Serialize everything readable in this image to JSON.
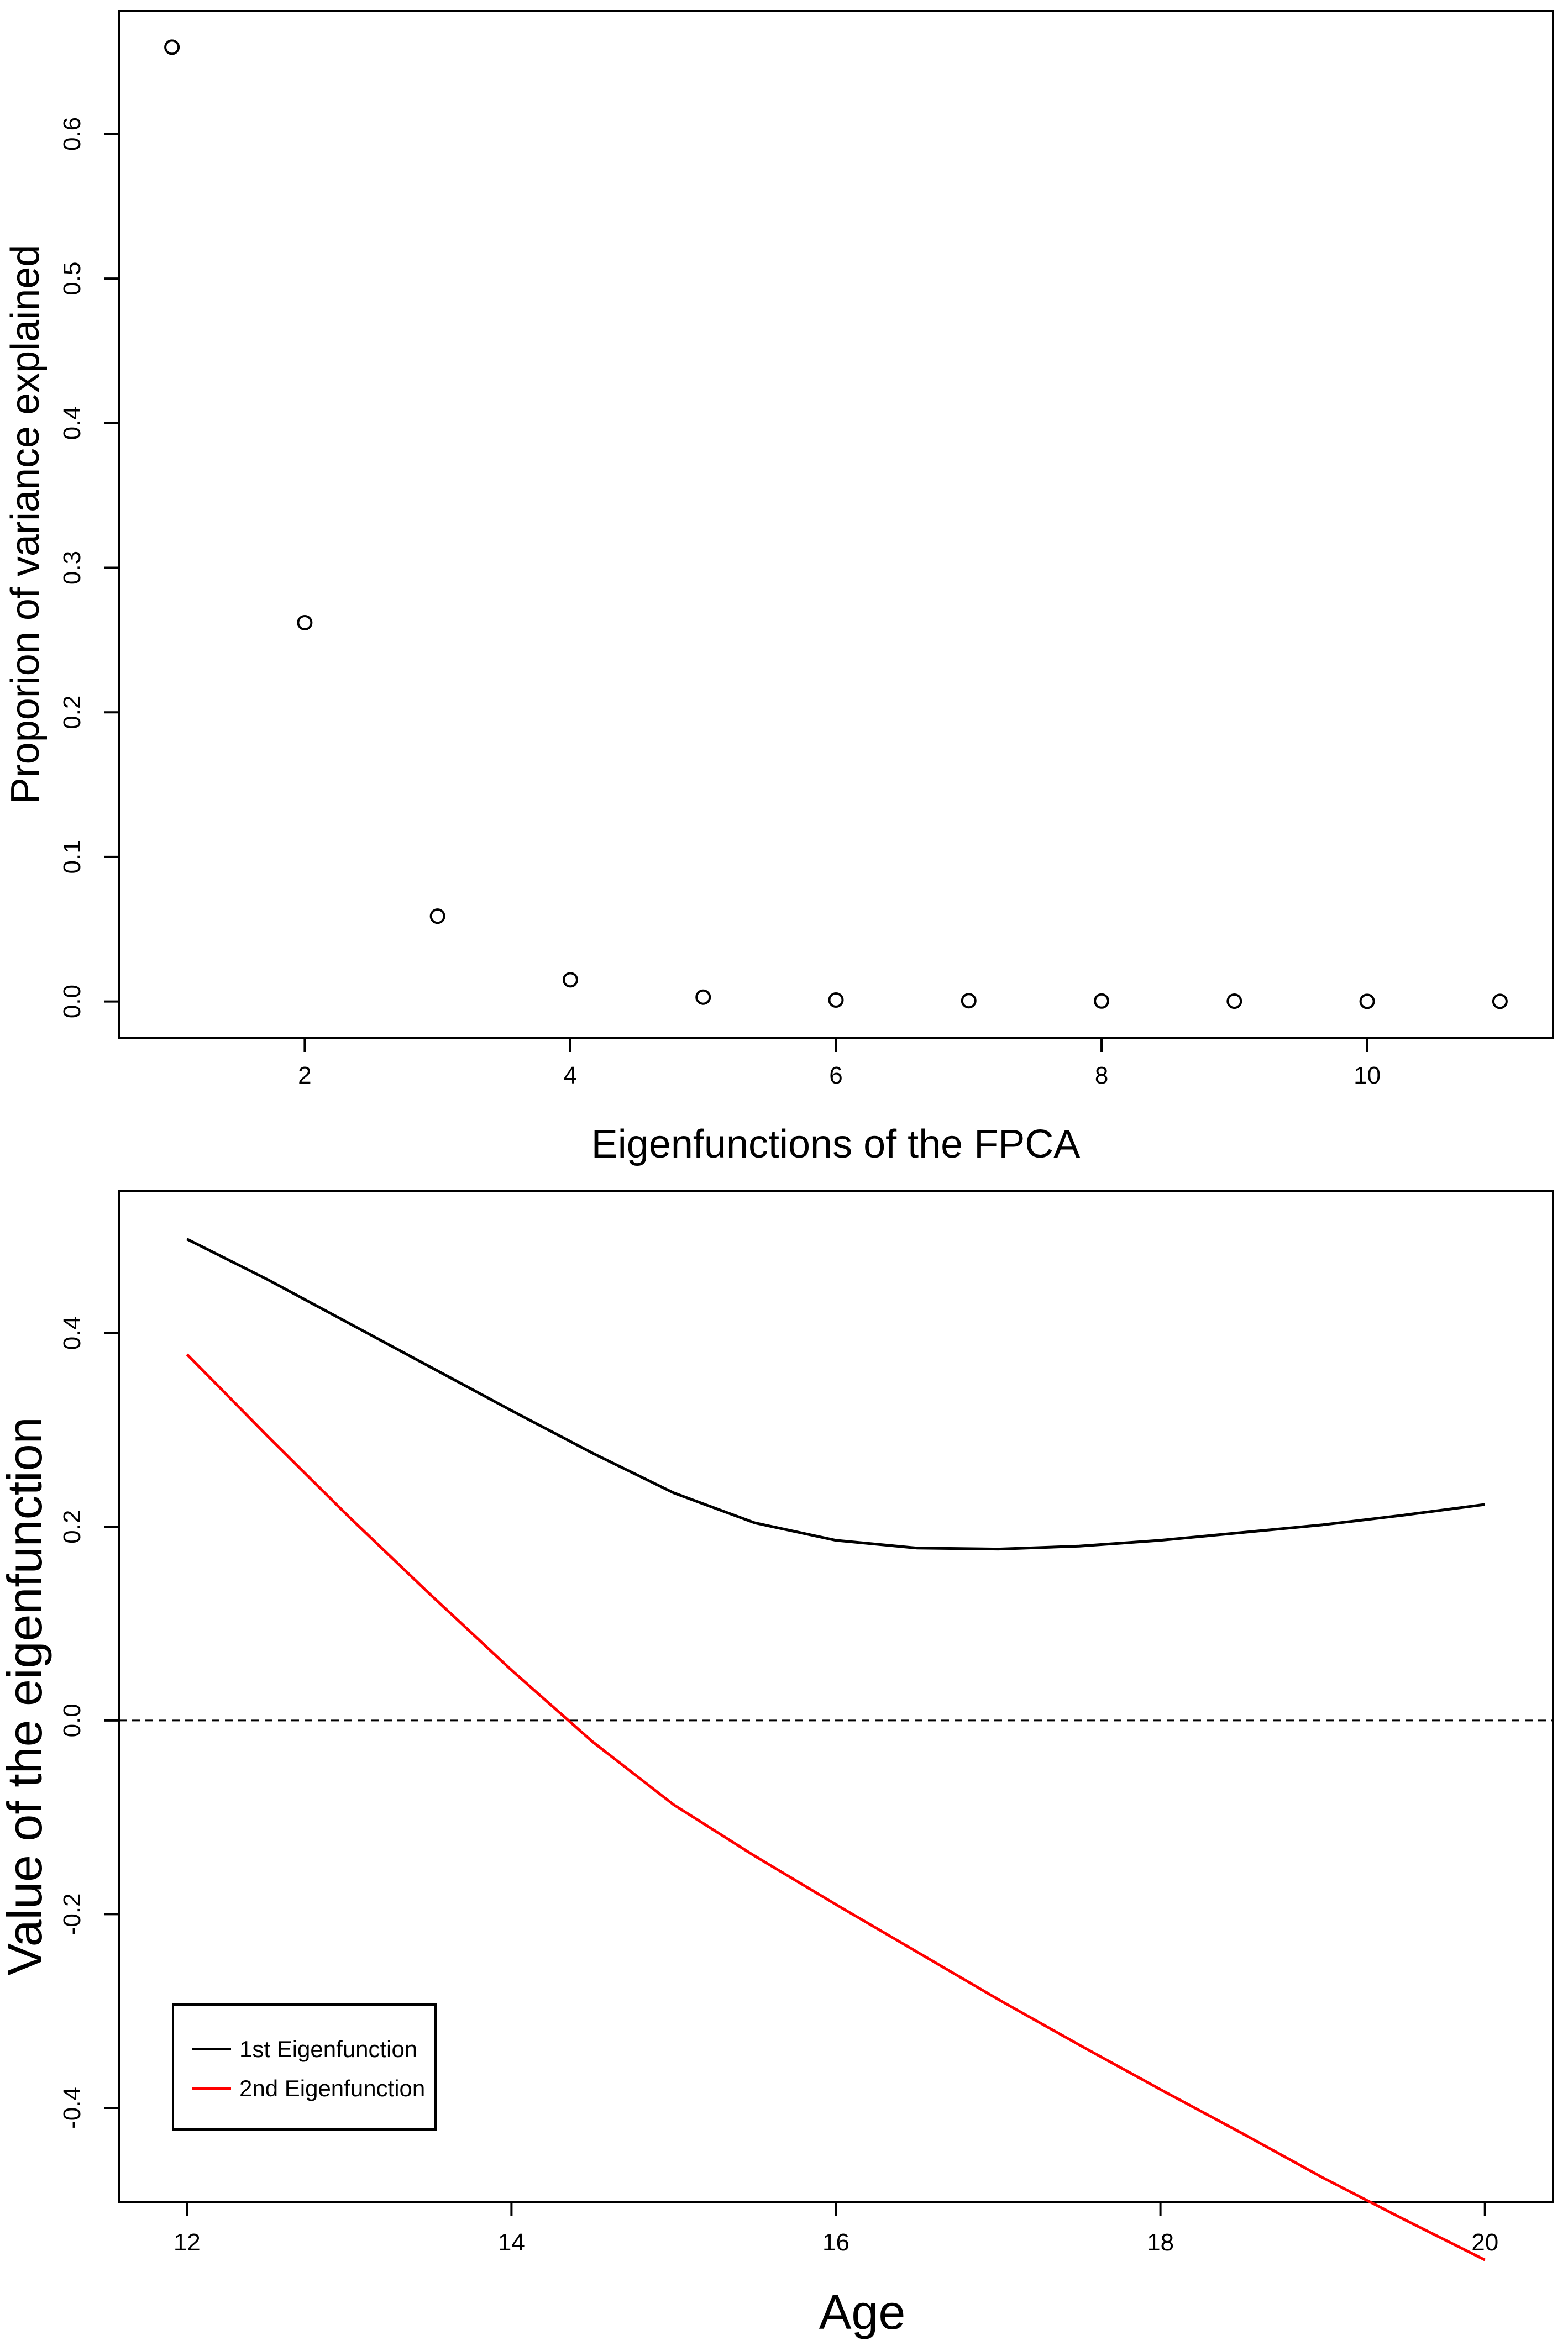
{
  "chart_data": [
    {
      "type": "scatter",
      "title": "",
      "xlabel": "Eigenfunctions of the FPCA",
      "ylabel": "Proporion of variance explained",
      "xlim": [
        0.6,
        11.4
      ],
      "ylim": [
        -0.025,
        0.685
      ],
      "xticks": [
        2,
        4,
        6,
        8,
        10
      ],
      "yticks": [
        0.0,
        0.1,
        0.2,
        0.3,
        0.4,
        0.5,
        0.6
      ],
      "xtick_labels": [
        "2",
        "4",
        "6",
        "8",
        "10"
      ],
      "ytick_labels": [
        "0.0",
        "0.1",
        "0.2",
        "0.3",
        "0.4",
        "0.5",
        "0.6"
      ],
      "x": [
        1,
        2,
        3,
        4,
        5,
        6,
        7,
        8,
        9,
        10,
        11
      ],
      "y": [
        0.66,
        0.262,
        0.059,
        0.015,
        0.003,
        0.001,
        0.0005,
        0.0003,
        0.0002,
        0.0001,
        0.0001
      ],
      "marker": "open-circle",
      "grid": false
    },
    {
      "type": "line",
      "title": "",
      "xlabel": "Age",
      "ylabel": "Value of the eigenfunction",
      "xlim": [
        11.58,
        20.42
      ],
      "ylim": [
        -0.497,
        0.547
      ],
      "xticks": [
        12,
        14,
        16,
        18,
        20
      ],
      "yticks": [
        -0.4,
        -0.2,
        0.0,
        0.2,
        0.4
      ],
      "xtick_labels": [
        "12",
        "14",
        "16",
        "18",
        "20"
      ],
      "ytick_labels": [
        "-0.4",
        "-0.2",
        "0.0",
        "0.2",
        "0.4"
      ],
      "reference_line": {
        "y": 0.0,
        "style": "dashed",
        "color": "#000000"
      },
      "legend_position": "bottom-left",
      "grid": false,
      "series": [
        {
          "name": "1st Eigenfunction",
          "color": "#000000",
          "x": [
            12,
            12.5,
            13,
            13.5,
            14,
            14.5,
            15,
            15.5,
            16,
            16.5,
            17,
            17.5,
            18,
            18.5,
            19,
            19.5,
            20
          ],
          "values": [
            0.497,
            0.455,
            0.41,
            0.365,
            0.32,
            0.276,
            0.235,
            0.204,
            0.186,
            0.178,
            0.177,
            0.18,
            0.186,
            0.194,
            0.202,
            0.212,
            0.223
          ]
        },
        {
          "name": "2nd Eigenfunction",
          "color": "#ff0000",
          "x": [
            12,
            12.5,
            13,
            13.5,
            14,
            14.5,
            15,
            15.5,
            16,
            16.5,
            17,
            17.5,
            18,
            18.5,
            19,
            19.5,
            20
          ],
          "values": [
            0.378,
            0.293,
            0.21,
            0.13,
            0.052,
            -0.022,
            -0.087,
            -0.14,
            -0.19,
            -0.239,
            -0.288,
            -0.335,
            -0.381,
            -0.426,
            -0.472,
            -0.515,
            -0.557
          ]
        }
      ]
    }
  ]
}
